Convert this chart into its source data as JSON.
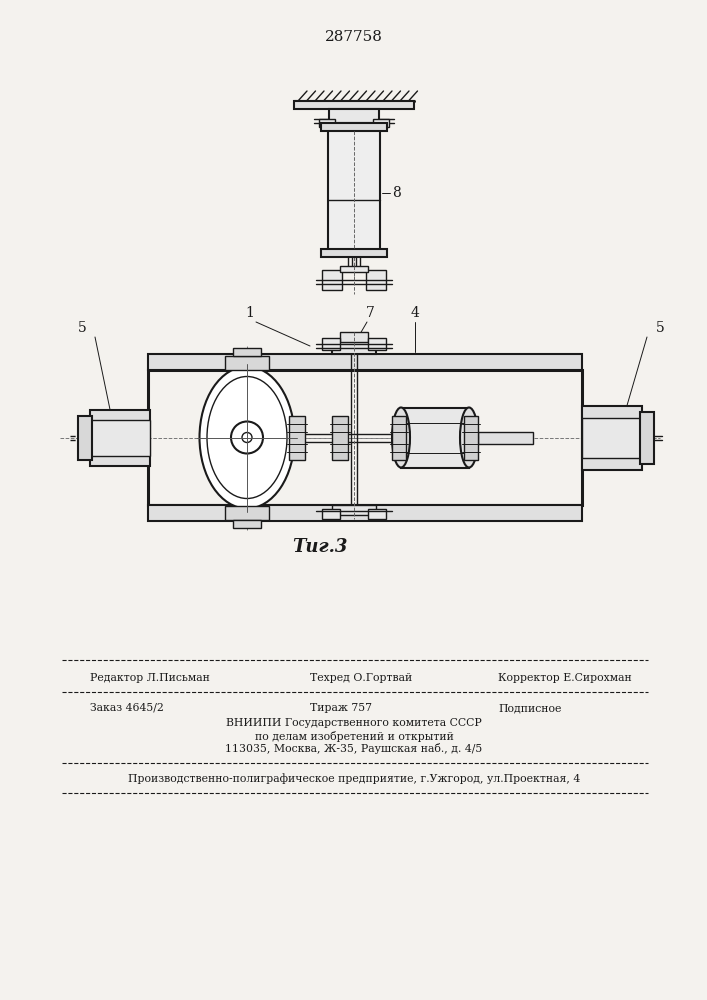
{
  "patent_number": "287758",
  "fig_label": "Τиг.3",
  "background_color": "#f4f2ee",
  "line_color": "#1a1a1a",
  "text_color": "#1a1a1a",
  "footer_line1_left": "Редактор Л.Письман",
  "footer_line1_mid": "Техред О.Гортвай",
  "footer_line1_right": "Корректор Е.Сирохман",
  "footer_line2_left": "Заказ 4645/2",
  "footer_line2_mid": "Тираж 757",
  "footer_line2_right": "Подписное",
  "footer_line3": "ВНИИПИ Государственного комитета СССР",
  "footer_line4": "по делам изобретений и открытий",
  "footer_line5": "113035, Москва, Ж-35, Раушская наб., д. 4/5",
  "footer_line6": "Производственно-полиграфическое предприятие, г.Ужгород, ул.Проектная, 4"
}
